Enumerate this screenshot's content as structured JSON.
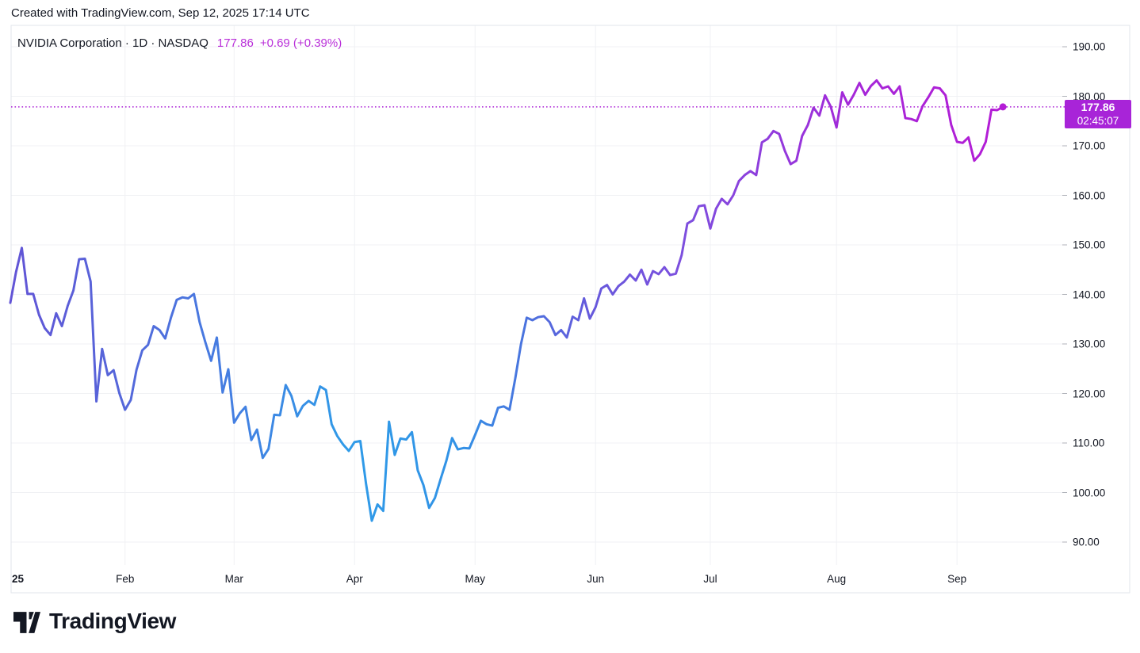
{
  "attribution": "Created with TradingView.com, Sep 12, 2025 17:14 UTC",
  "header": {
    "symbol_title": "NVIDIA Corporation · 1D · NASDAQ",
    "price": "177.86",
    "change": "+0.69 (+0.39%)"
  },
  "price_scale": {
    "badge": {
      "price": "177.86",
      "countdown": "02:45:07"
    }
  },
  "footer": {
    "logo_text": "TradingView"
  },
  "colors": {
    "text": "#131722",
    "grid": "#F0F1F4",
    "border": "#E2E5EB",
    "axis_tick": "#AFB2B9",
    "accent_magenta": "#B92FD9",
    "badge_bg": "#A824D8",
    "dotted_line": "#AC22D6",
    "marker": "#B41CD6"
  },
  "chart_data": {
    "type": "line",
    "title": "NVIDIA Corporation · 1D · NASDAQ",
    "symbol": "NVIDIA Corporation",
    "interval": "1D",
    "exchange": "NASDAQ",
    "current_price": 177.86,
    "change": "+0.69 (+0.39%)",
    "countdown": "02:45:07",
    "grid": true,
    "ylim": [
      85.4,
      194.3
    ],
    "y_ticks": [
      "190.00",
      "180.00",
      "170.00",
      "160.00",
      "150.00",
      "140.00",
      "130.00",
      "120.00",
      "110.00",
      "100.00",
      "90.00"
    ],
    "x_ticks": [
      {
        "label": "25",
        "index": 0,
        "bold": true
      },
      {
        "label": "Feb",
        "index": 20
      },
      {
        "label": "Mar",
        "index": 39
      },
      {
        "label": "Apr",
        "index": 60
      },
      {
        "label": "May",
        "index": 81
      },
      {
        "label": "Jun",
        "index": 102
      },
      {
        "label": "Jul",
        "index": 122
      },
      {
        "label": "Aug",
        "index": 144
      },
      {
        "label": "Sep",
        "index": 165
      }
    ],
    "dates": [
      "Jan 2",
      "Jan 3",
      "Jan 6",
      "Jan 7",
      "Jan 8",
      "Jan 10",
      "Jan 13",
      "Jan 14",
      "Jan 15",
      "Jan 16",
      "Jan 17",
      "Jan 21",
      "Jan 22",
      "Jan 23",
      "Jan 24",
      "Jan 27",
      "Jan 28",
      "Jan 29",
      "Jan 30",
      "Jan 31",
      "Feb 3",
      "Feb 4",
      "Feb 5",
      "Feb 6",
      "Feb 7",
      "Feb 10",
      "Feb 11",
      "Feb 12",
      "Feb 13",
      "Feb 14",
      "Feb 18",
      "Feb 19",
      "Feb 20",
      "Feb 21",
      "Feb 24",
      "Feb 25",
      "Feb 26",
      "Feb 27",
      "Feb 28",
      "Mar 3",
      "Mar 4",
      "Mar 5",
      "Mar 6",
      "Mar 7",
      "Mar 10",
      "Mar 11",
      "Mar 12",
      "Mar 13",
      "Mar 14",
      "Mar 17",
      "Mar 18",
      "Mar 19",
      "Mar 20",
      "Mar 21",
      "Mar 24",
      "Mar 25",
      "Mar 26",
      "Mar 27",
      "Mar 28",
      "Mar 31",
      "Apr 1",
      "Apr 2",
      "Apr 3",
      "Apr 4",
      "Apr 7",
      "Apr 8",
      "Apr 9",
      "Apr 10",
      "Apr 11",
      "Apr 14",
      "Apr 15",
      "Apr 16",
      "Apr 17",
      "Apr 21",
      "Apr 22",
      "Apr 23",
      "Apr 24",
      "Apr 25",
      "Apr 28",
      "Apr 29",
      "Apr 30",
      "May 1",
      "May 2",
      "May 5",
      "May 6",
      "May 7",
      "May 8",
      "May 9",
      "May 12",
      "May 13",
      "May 14",
      "May 15",
      "May 16",
      "May 19",
      "May 20",
      "May 21",
      "May 22",
      "May 23",
      "May 27",
      "May 28",
      "May 29",
      "May 30",
      "Jun 2",
      "Jun 3",
      "Jun 4",
      "Jun 5",
      "Jun 6",
      "Jun 9",
      "Jun 10",
      "Jun 11",
      "Jun 12",
      "Jun 13",
      "Jun 16",
      "Jun 17",
      "Jun 18",
      "Jun 20",
      "Jun 23",
      "Jun 24",
      "Jun 25",
      "Jun 26",
      "Jun 27",
      "Jun 30",
      "Jul 1",
      "Jul 2",
      "Jul 3",
      "Jul 7",
      "Jul 8",
      "Jul 9",
      "Jul 10",
      "Jul 11",
      "Jul 14",
      "Jul 15",
      "Jul 16",
      "Jul 17",
      "Jul 18",
      "Jul 21",
      "Jul 22",
      "Jul 23",
      "Jul 24",
      "Jul 25",
      "Jul 28",
      "Jul 29",
      "Jul 30",
      "Jul 31",
      "Aug 1",
      "Aug 4",
      "Aug 5",
      "Aug 6",
      "Aug 7",
      "Aug 8",
      "Aug 11",
      "Aug 12",
      "Aug 13",
      "Aug 14",
      "Aug 15",
      "Aug 18",
      "Aug 19",
      "Aug 20",
      "Aug 21",
      "Aug 22",
      "Aug 25",
      "Aug 26",
      "Aug 27",
      "Aug 28",
      "Aug 29",
      "Sep 2",
      "Sep 3",
      "Sep 4",
      "Sep 5",
      "Sep 8",
      "Sep 9",
      "Sep 10",
      "Sep 11",
      "Sep 12"
    ],
    "values": [
      138.3,
      144.5,
      149.4,
      140.1,
      140.1,
      135.9,
      133.2,
      131.8,
      136.2,
      133.6,
      137.7,
      140.8,
      147.1,
      147.2,
      142.6,
      118.4,
      129.0,
      123.7,
      124.7,
      120.1,
      116.7,
      118.7,
      124.8,
      128.7,
      129.8,
      133.6,
      132.8,
      131.1,
      135.3,
      138.9,
      139.4,
      139.2,
      140.1,
      134.4,
      130.3,
      126.6,
      131.3,
      120.2,
      124.9,
      114.1,
      116.0,
      117.3,
      110.6,
      112.7,
      107.0,
      108.8,
      115.7,
      115.6,
      121.7,
      119.5,
      115.4,
      117.5,
      118.5,
      117.7,
      121.4,
      120.7,
      113.8,
      111.4,
      109.7,
      108.4,
      110.2,
      110.4,
      101.8,
      94.3,
      97.6,
      96.3,
      114.3,
      107.6,
      110.9,
      110.7,
      112.2,
      104.5,
      101.5,
      96.9,
      98.9,
      102.7,
      106.4,
      111.0,
      108.7,
      109.0,
      108.9,
      111.6,
      114.5,
      113.8,
      113.5,
      117.1,
      117.4,
      116.7,
      123.0,
      129.9,
      135.3,
      134.8,
      135.4,
      135.6,
      134.4,
      131.8,
      132.8,
      131.3,
      135.5,
      134.8,
      139.2,
      135.1,
      137.4,
      141.2,
      141.9,
      140.0,
      141.7,
      142.6,
      144.0,
      142.8,
      145.0,
      142.0,
      144.7,
      144.1,
      145.5,
      143.9,
      144.2,
      147.9,
      154.3,
      155.0,
      157.8,
      158.0,
      153.3,
      157.3,
      159.3,
      158.2,
      160.0,
      162.9,
      164.1,
      164.9,
      164.1,
      170.7,
      171.4,
      173.0,
      172.4,
      169.0,
      166.3,
      167.0,
      172.0,
      174.2,
      177.7,
      176.1,
      180.2,
      177.9,
      173.7,
      180.8,
      178.3,
      180.3,
      182.7,
      180.3,
      182.1,
      183.2,
      181.6,
      182.0,
      180.5,
      182.0,
      175.6,
      175.4,
      175.0,
      178.0,
      179.8,
      181.8,
      181.6,
      180.2,
      174.2,
      170.8,
      170.6,
      171.7,
      167.0,
      168.3,
      170.8,
      177.3,
      177.2,
      177.86
    ],
    "line_gradient": [
      {
        "offset": 0.0,
        "color": "#6254D6"
      },
      {
        "offset": 0.113,
        "color": "#5567DA"
      },
      {
        "offset": 0.229,
        "color": "#4380E2"
      },
      {
        "offset": 0.341,
        "color": "#2F9BE8"
      },
      {
        "offset": 0.453,
        "color": "#3292E6"
      },
      {
        "offset": 0.521,
        "color": "#4C72DE"
      },
      {
        "offset": 0.585,
        "color": "#6659DC"
      },
      {
        "offset": 0.684,
        "color": "#7E4EDE"
      },
      {
        "offset": 0.78,
        "color": "#9438DC"
      },
      {
        "offset": 0.852,
        "color": "#A527D8"
      },
      {
        "offset": 1.0,
        "color": "#B41CD6"
      }
    ]
  }
}
